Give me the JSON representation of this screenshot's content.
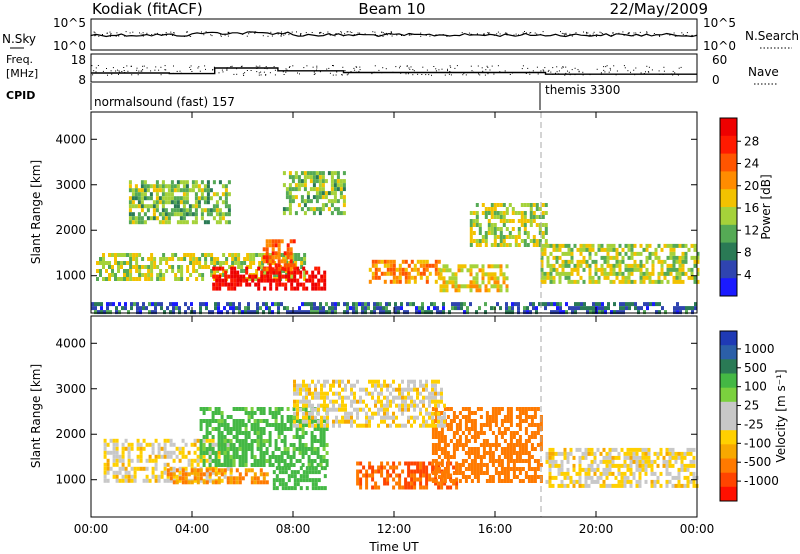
{
  "header": {
    "radar": "Kodiak (fitACF)",
    "beam": "Beam 10",
    "date": "22/May/2009"
  },
  "panels": {
    "nsky": {
      "label": "N.Sky",
      "yticks_left": [
        "10^5",
        "10^0"
      ],
      "right_label": "N.Search",
      "yticks_right": [
        "10^5",
        "10^0"
      ]
    },
    "freq": {
      "label_line1": "Freq.",
      "label_line2": "[MHz]",
      "yticks_left": [
        "18",
        "8"
      ],
      "right_label": "Nave",
      "yticks_right": [
        "60",
        "0"
      ]
    },
    "cpid": {
      "label": "CPID",
      "mode1": "normalsound (fast) 157",
      "mode2": "themis 3300",
      "mode_switch_time": "18:00"
    }
  },
  "colorbars": {
    "power": {
      "title": "Power [dB]",
      "ticks": [
        "28",
        "24",
        "20",
        "16",
        "12",
        "8",
        "4"
      ],
      "colors": [
        "#1a1aff",
        "#2f44b0",
        "#2a7a55",
        "#55aa55",
        "#a5d23a",
        "#f2c200",
        "#ff8c00",
        "#ff5500",
        "#ff1a00",
        "#ee0000"
      ]
    },
    "velocity": {
      "title": "Velocity [m s⁻¹]",
      "ticks": [
        "1000",
        "500",
        "100",
        "25",
        "-25",
        "-100",
        "-500",
        "-1000"
      ],
      "colors": [
        "#1f3ab5",
        "#2b5fa8",
        "#2a7a55",
        "#44b844",
        "#7bd13e",
        "#c8c8c8",
        "#c8c8c8",
        "#ffd000",
        "#f7a800",
        "#ff7a00",
        "#ff4400",
        "#ff1000"
      ]
    }
  },
  "chart_data": [
    {
      "type": "heatmap",
      "name": "power",
      "xlabel": "",
      "ylabel": "Slant Range [km]",
      "x_ticks": [
        "00:00",
        "04:00",
        "08:00",
        "12:00",
        "16:00",
        "20:00",
        "00:00"
      ],
      "y_ticks": [
        "1000",
        "2000",
        "3000",
        "4000"
      ],
      "ylim": [
        180,
        4600
      ],
      "xlim_hours": [
        0,
        24
      ],
      "regions": [
        {
          "t0": 0.2,
          "t1": 8.5,
          "r0": 900,
          "r1": 1500,
          "v": 14
        },
        {
          "t0": 4.8,
          "t1": 9.3,
          "r0": 750,
          "r1": 1200,
          "v": 28
        },
        {
          "t0": 6.8,
          "t1": 8.0,
          "r0": 1100,
          "r1": 1800,
          "v": 22
        },
        {
          "t0": 1.5,
          "t1": 5.5,
          "r0": 2200,
          "r1": 3100,
          "v": 12
        },
        {
          "t0": 7.6,
          "t1": 10.0,
          "r0": 2400,
          "r1": 3300,
          "v": 12
        },
        {
          "t0": 11.0,
          "t1": 13.8,
          "r0": 900,
          "r1": 1350,
          "v": 20
        },
        {
          "t0": 13.8,
          "t1": 16.5,
          "r0": 650,
          "r1": 1250,
          "v": 16
        },
        {
          "t0": 15.0,
          "t1": 18.0,
          "r0": 1700,
          "r1": 2600,
          "v": 14
        },
        {
          "t0": 17.8,
          "t1": 24.0,
          "r0": 850,
          "r1": 1700,
          "v": 14
        },
        {
          "t0": 0.0,
          "t1": 24.0,
          "r0": 200,
          "r1": 420,
          "v": 6
        }
      ]
    },
    {
      "type": "heatmap",
      "name": "velocity",
      "xlabel": "Time UT",
      "ylabel": "Slant Range [km]",
      "x_ticks": [
        "00:00",
        "04:00",
        "08:00",
        "12:00",
        "16:00",
        "20:00",
        "00:00"
      ],
      "y_ticks": [
        "1000",
        "2000",
        "3000",
        "4000"
      ],
      "ylim": [
        180,
        4600
      ],
      "xlim_hours": [
        0,
        24
      ],
      "regions": [
        {
          "t0": 0.5,
          "t1": 5.5,
          "r0": 1000,
          "r1": 1900,
          "v": 0
        },
        {
          "t0": 4.3,
          "t1": 9.3,
          "r0": 1300,
          "r1": 2600,
          "v": 120
        },
        {
          "t0": 7.2,
          "t1": 9.3,
          "r0": 850,
          "r1": 1300,
          "v": 200
        },
        {
          "t0": 3.0,
          "t1": 7.0,
          "r0": 900,
          "r1": 1250,
          "v": -100
        },
        {
          "t0": 10.5,
          "t1": 14.5,
          "r0": 850,
          "r1": 1400,
          "v": -300
        },
        {
          "t0": 13.5,
          "t1": 17.8,
          "r0": 1000,
          "r1": 2600,
          "v": -150
        },
        {
          "t0": 18.0,
          "t1": 24.0,
          "r0": 900,
          "r1": 1700,
          "v": 0
        },
        {
          "t0": 8.0,
          "t1": 14.0,
          "r0": 2200,
          "r1": 3200,
          "v": 0
        }
      ]
    }
  ]
}
